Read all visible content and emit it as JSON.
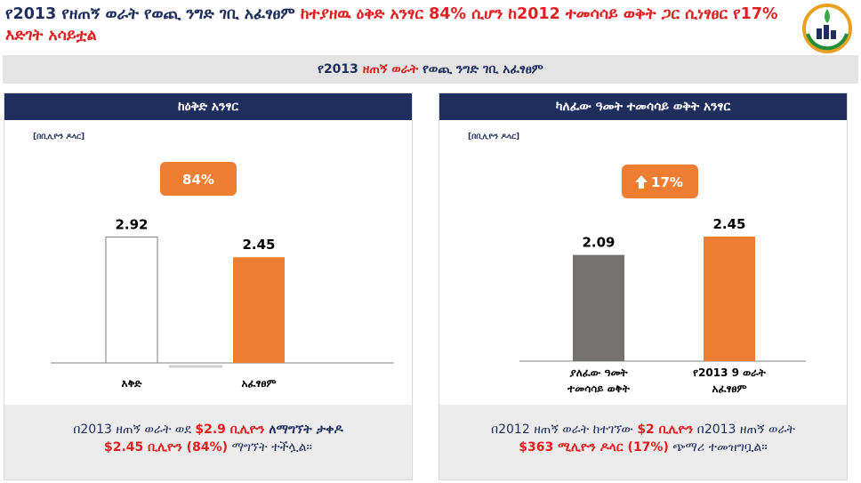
{
  "header": {
    "title_part1": "የ2013 የዘጠኝ ወራት የወጪ ንግድ ገቢ አፈፃፀም ",
    "title_part2": "ከተያዘዉ ዕቅድ አንፃር 84% ሲሆን ",
    "title_part3": "ከ2012 ተመሳሳይ ወቅት ጋር ሲነፃፀር የ17% እድገት አሳይቷል"
  },
  "subheader": {
    "part1": "የ2013 ",
    "part2": "ዘጠኝ ወራት",
    "part3": " የወጪ ንግድ ገቢ አፈፃፀም"
  },
  "colors": {
    "navy": "#1f2e5c",
    "orange": "#ed7d31",
    "gray": "#767171",
    "red": "#e02020"
  },
  "left_panel": {
    "heading": "ከዕቅድ አንፃር",
    "unit": "[በቢሊዮን ዶላር]",
    "badge": "84%",
    "footer_line1_a": "በ2013 ዘጠኝ ወራት ወደ ",
    "footer_line1_b": "$2.9 ቢሊዮን",
    "footer_line1_c": " ለማግኘት ታቀዶ",
    "footer_line2_a": "$2.45 ቢሊዮን (84%)",
    "footer_line2_b": " ማግኘት ተችሏል።"
  },
  "right_panel": {
    "heading": "ካለፈው ዓመት ተመሳሳይ ወቅት አንፃር",
    "unit": "[በቢሊዮን ዶላር]",
    "badge": "17%",
    "badge_icon": "arrow-up-icon",
    "footer_line1_a": "በ2012 ዘጠኝ ወራት ከተገኘው ",
    "footer_line1_b": "$2 ቢሊዮን",
    "footer_line1_c": " በ2013 ዘጠኝ ወራት",
    "footer_line2_a": "$363 ሚሊዮን ዶላር (17%)",
    "footer_line2_b": " ጭማሪ ተመዝግቧል።"
  },
  "chart_data": [
    {
      "type": "bar",
      "categories": [
        "እቅድ",
        "አፈፃፀም"
      ],
      "values": [
        2.92,
        2.45
      ],
      "bar_colors": [
        "#ffffff",
        "#ed7d31"
      ],
      "ylim": [
        0,
        3.3
      ],
      "title": "ከዕቅድ አንፃር"
    },
    {
      "type": "bar",
      "categories": [
        [
          "ያለፈው ዓመት",
          "ተመሳሳይ ወቅት"
        ],
        [
          "የ2013 9 ወራት",
          "አፈፃፀም"
        ]
      ],
      "values": [
        2.09,
        2.45
      ],
      "bar_colors": [
        "#767171",
        "#ed7d31"
      ],
      "ylim": [
        0,
        2.8
      ],
      "title": "ካለፈው ዓመት ተመሳሳይ ወቅት አንፃር"
    }
  ]
}
